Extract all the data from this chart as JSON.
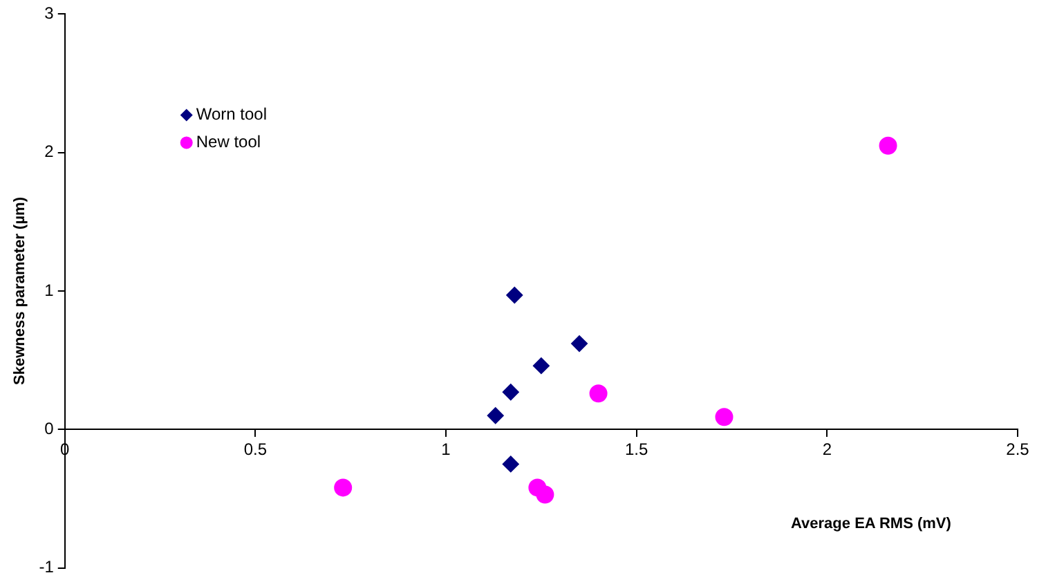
{
  "chart_data": {
    "type": "scatter",
    "xlabel": "Average EA RMS (mV)",
    "ylabel": "Skewness parameter (µm)",
    "xlim": [
      0,
      2.5
    ],
    "xticks": [
      0,
      0.5,
      1,
      1.5,
      2,
      2.5
    ],
    "ylim": [
      -1,
      3
    ],
    "yticks": [
      -1,
      0,
      1,
      2,
      3
    ],
    "grid": false,
    "legend": "top left",
    "series": [
      {
        "name": "Worn tool",
        "color": "#000080",
        "marker": "diamond",
        "x": [
          1.18,
          1.35,
          1.25,
          1.17,
          1.13,
          1.17
        ],
        "values": [
          0.97,
          0.62,
          0.46,
          0.27,
          0.1,
          -0.25
        ]
      },
      {
        "name": "New tool",
        "color": "#ff00ff",
        "marker": "circle",
        "x": [
          0.73,
          1.24,
          1.26,
          1.4,
          1.73,
          2.16
        ],
        "values": [
          -0.42,
          -0.42,
          -0.47,
          0.26,
          0.09,
          2.05
        ]
      }
    ]
  }
}
